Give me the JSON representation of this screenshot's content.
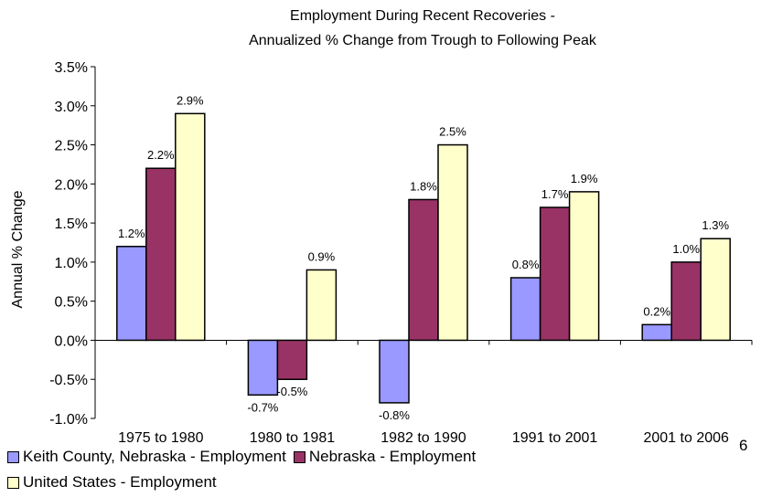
{
  "chart_data": {
    "type": "bar",
    "title": [
      "Employment During Recent Recoveries -",
      "Annualized % Change from Trough to Following Peak"
    ],
    "ylabel": "Annual % Change",
    "xlabel": "",
    "ylim": [
      -1.0,
      3.5
    ],
    "yticks": [
      -1.0,
      -0.5,
      0.0,
      0.5,
      1.0,
      1.5,
      2.0,
      2.5,
      3.0,
      3.5
    ],
    "ytick_labels": [
      "-1.0%",
      "-0.5%",
      "0.0%",
      "0.5%",
      "1.0%",
      "1.5%",
      "2.0%",
      "2.5%",
      "3.0%",
      "3.5%"
    ],
    "categories": [
      "1975 to 1980",
      "1980 to 1981",
      "1982 to 1990",
      "1991 to 2001",
      "2001 to 2006"
    ],
    "grid": false,
    "legend_position": "bottom",
    "series": [
      {
        "name": "Keith County, Nebraska - Employment",
        "color": "#9999ff",
        "values": [
          1.2,
          -0.7,
          -0.8,
          0.8,
          0.2
        ],
        "labels": [
          "1.2%",
          "-0.7%",
          "-0.8%",
          "0.8%",
          "0.2%"
        ]
      },
      {
        "name": "Nebraska - Employment",
        "color": "#993366",
        "values": [
          2.2,
          -0.5,
          1.8,
          1.7,
          1.0
        ],
        "labels": [
          "2.2%",
          "-0.5%",
          "1.8%",
          "1.7%",
          "1.0%"
        ]
      },
      {
        "name": "United States - Employment",
        "color": "#ffffcc",
        "values": [
          2.9,
          0.9,
          2.5,
          1.9,
          1.3
        ],
        "labels": [
          "2.9%",
          "0.9%",
          "2.5%",
          "1.9%",
          "1.3%"
        ]
      }
    ]
  },
  "page_number": "6"
}
